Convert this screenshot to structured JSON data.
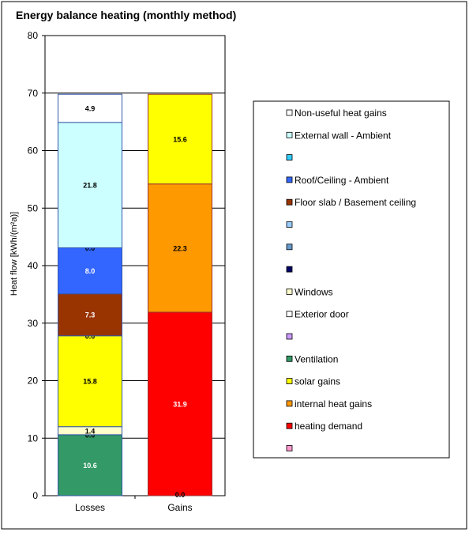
{
  "chart_data": {
    "type": "bar",
    "stacked": true,
    "title": "Energy balance heating (monthly method)",
    "ylabel": "Heat flow [kWh/(m²a)]",
    "xlabel": "",
    "ylim": [
      0,
      80
    ],
    "yticks": [
      0,
      10,
      20,
      30,
      40,
      50,
      60,
      70,
      80
    ],
    "ytick_labels": [
      "0",
      "10",
      "20",
      "30",
      "40",
      "50",
      "60",
      "70",
      "80"
    ],
    "grid": true,
    "legend_position": "right",
    "categories": [
      "Losses",
      "Gains"
    ],
    "bars": [
      {
        "category": "Losses",
        "segments": [
          {
            "label": "Ventilation",
            "value": 10.6,
            "text": "10.6",
            "color": "#339966",
            "text_color": "#ffffff"
          },
          {
            "label": "Exterior door",
            "value": 0.0,
            "text": "0.0",
            "color": "#ffffff",
            "text_color": "#000000"
          },
          {
            "label": "Windows",
            "value": 1.4,
            "text": "1.4",
            "color": "#ffffcc",
            "text_color": "#000000"
          },
          {
            "label": "solar gains",
            "value": 15.8,
            "text": "15.8",
            "color": "#ffff00",
            "text_color": "#000000"
          },
          {
            "label": "",
            "value": 0.0,
            "text": "0.0",
            "color": "#cc99ff",
            "text_color": "#000000"
          },
          {
            "label": "Floor slab / Basement ceiling",
            "value": 7.3,
            "text": "7.3",
            "color": "#993300",
            "text_color": "#ffffff"
          },
          {
            "label": "Roof/Ceiling - Ambient",
            "value": 8.0,
            "text": "8.0",
            "color": "#3366ff",
            "text_color": "#ffffff"
          },
          {
            "label": "",
            "value": 0.0,
            "text": "0.0",
            "color": "#33ccff",
            "text_color": "#000000"
          },
          {
            "label": "External wall - Ambient",
            "value": 21.8,
            "text": "21.8",
            "color": "#ccffff",
            "text_color": "#000000"
          },
          {
            "label": "Non-useful heat gains",
            "value": 4.9,
            "text": "4.9",
            "color": "#ffffff",
            "text_color": "#000000"
          }
        ]
      },
      {
        "category": "Gains",
        "segments": [
          {
            "label": "heating demand",
            "value": 31.9,
            "text": "31.9",
            "color": "#ff0000",
            "text_color": "#ffffff"
          },
          {
            "label": "internal heat gains",
            "value": 22.3,
            "text": "22.3",
            "color": "#ff9900",
            "text_color": "#000000"
          },
          {
            "label": "solar gains",
            "value": 15.6,
            "text": "15.6",
            "color": "#ffff00",
            "text_color": "#000000"
          }
        ]
      }
    ],
    "extra_labels": [
      {
        "category": "Gains",
        "y": 0.0,
        "text": "0.0"
      }
    ],
    "legend": [
      {
        "label": "Non-useful heat gains",
        "color": "#ffffff"
      },
      {
        "label": "External wall - Ambient",
        "color": "#ccffff"
      },
      {
        "label": "",
        "color": "#33ccff"
      },
      {
        "label": "Roof/Ceiling - Ambient",
        "color": "#3366ff"
      },
      {
        "label": "Floor slab / Basement ceiling",
        "color": "#993300"
      },
      {
        "label": "",
        "color": "#99ccff"
      },
      {
        "label": "",
        "color": "#6699cc"
      },
      {
        "label": "",
        "color": "#000066"
      },
      {
        "label": "Windows",
        "color": "#ffffcc"
      },
      {
        "label": "Exterior door",
        "color": "#ffffff"
      },
      {
        "label": "",
        "color": "#cc99ff"
      },
      {
        "label": "Ventilation",
        "color": "#339966"
      },
      {
        "label": "solar gains",
        "color": "#ffff00"
      },
      {
        "label": "internal heat gains",
        "color": "#ff9900"
      },
      {
        "label": "heating demand",
        "color": "#ff0000"
      },
      {
        "label": "",
        "color": "#ff99cc"
      }
    ]
  }
}
